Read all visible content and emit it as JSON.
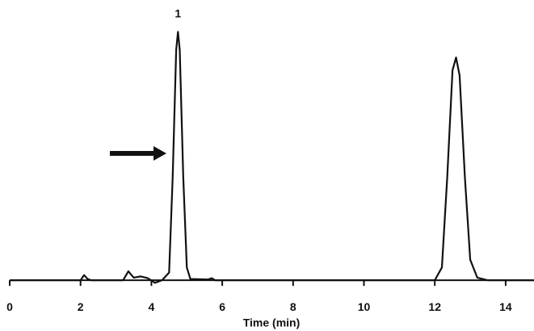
{
  "chart_data": {
    "type": "line",
    "x_label": "Time (min)",
    "annotation": "1",
    "annotation_x": 4.75,
    "color": "#111111",
    "x": [
      0,
      2.0,
      2.1,
      2.2,
      2.3,
      3.2,
      3.35,
      3.5,
      3.7,
      3.9,
      4.1,
      4.3,
      4.5,
      4.6,
      4.7,
      4.75,
      4.8,
      4.9,
      5.0,
      5.1,
      5.6,
      5.7,
      5.8,
      12.0,
      12.2,
      12.35,
      12.5,
      12.6,
      12.7,
      12.85,
      13.0,
      13.2,
      13.5,
      14.8
    ],
    "values": [
      0,
      0,
      2,
      0.5,
      0,
      0,
      3.5,
      1,
      1.5,
      0.8,
      -1,
      0,
      3,
      40,
      90,
      97,
      90,
      40,
      5,
      0.5,
      0.3,
      0.8,
      0,
      0,
      5,
      40,
      82,
      87,
      80,
      40,
      8,
      1,
      0,
      0
    ],
    "xlim": [
      0,
      14.8
    ],
    "ylim": [
      -5,
      100
    ],
    "xticks": [
      0,
      2,
      4,
      6,
      8,
      10,
      12,
      14
    ]
  }
}
